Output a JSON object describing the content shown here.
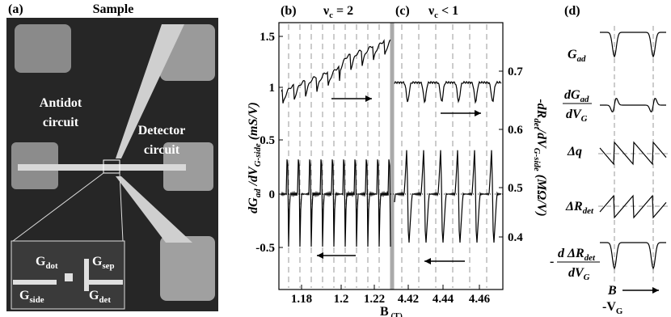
{
  "panels": {
    "a": {
      "label": "(a)",
      "title": "Sample",
      "antidot": [
        "Antidot",
        "circuit"
      ],
      "detector": [
        "Detector",
        "circuit"
      ],
      "inset": {
        "dot": [
          "G",
          "dot"
        ],
        "sep": [
          "G",
          "sep"
        ],
        "side": [
          "G",
          "side"
        ],
        "det": [
          "G",
          "det"
        ]
      }
    },
    "b": {
      "label": "(b)",
      "nu": [
        "ν",
        "c",
        " = 2"
      ],
      "xticks": [
        "1.18",
        "1.2",
        "1.22"
      ],
      "yticks": [
        "1.5",
        "1",
        "0.5",
        "0",
        "-0.5"
      ],
      "ylabel": [
        "dG",
        "ad",
        " /dV",
        "G-side",
        " (mS/V)"
      ]
    },
    "c": {
      "label": "(c)",
      "nu": [
        "ν",
        "c",
        " < 1"
      ],
      "xticks": [
        "4.42",
        "4.44",
        "4.46"
      ],
      "yticks": [
        "0.7",
        "0.6",
        "0.5",
        "0.4"
      ],
      "ylabel": [
        "-dR",
        "det",
        "/dV",
        "G-side",
        " (MΩ/V)"
      ]
    },
    "d": {
      "label": "(d)",
      "g": [
        "G",
        "ad"
      ],
      "dg_num": [
        "dG",
        "ad"
      ],
      "dg_den": [
        "dV",
        "G"
      ],
      "dq": [
        "Δq"
      ],
      "dr": [
        "ΔR",
        "det"
      ],
      "ddr_sign": "-",
      "ddr_num": [
        "d ΔR",
        "det"
      ],
      "ddr_den": [
        "dV",
        "G"
      ],
      "b": "B",
      "vg": [
        "-V",
        "G"
      ]
    }
  },
  "xlabel": [
    "B",
    " (T)"
  ]
}
